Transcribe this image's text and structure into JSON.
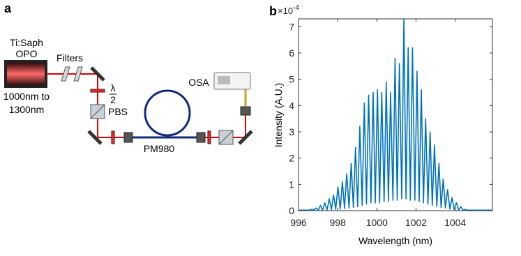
{
  "panel_a": {
    "panel_label": "a",
    "source_line1": "Ti:Saph",
    "source_line2": "OPO",
    "range_line1": "1000nm to",
    "range_line2": "1300nm",
    "filters": "Filters",
    "half_wave": {
      "numerator": "λ",
      "denominator": "2"
    },
    "pbs": "PBS",
    "fiber": "PM980",
    "osa": "OSA"
  },
  "chart_data": {
    "type": "line",
    "panel_label": "b",
    "x_label": "Wavelength (nm)",
    "y_label": "Intensity (A.U.)",
    "y_multiplier": "×10",
    "y_multiplier_exponent": "-4",
    "xlim": [
      996,
      1005.9
    ],
    "xticks": [
      996,
      998,
      1000,
      1002,
      1004
    ],
    "ylim": [
      0,
      7.3
    ],
    "yticks": [
      0,
      1,
      2,
      3,
      4,
      5,
      6,
      7
    ],
    "x": [
      996.0,
      996.56,
      996.67,
      996.78,
      996.89,
      997.01,
      997.12,
      997.23,
      997.34,
      997.46,
      997.57,
      997.68,
      997.79,
      997.9,
      998.01,
      998.13,
      998.24,
      998.35,
      998.46,
      998.58,
      998.69,
      998.8,
      998.91,
      999.02,
      999.13,
      999.25,
      999.36,
      999.47,
      999.58,
      999.7,
      999.81,
      999.92,
      1000.03,
      1000.14,
      1000.25,
      1000.37,
      1000.48,
      1000.59,
      1000.7,
      1000.82,
      1000.93,
      1001.04,
      1001.15,
      1001.27,
      1001.38,
      1001.49,
      1001.6,
      1001.71,
      1001.82,
      1001.94,
      1002.05,
      1002.16,
      1002.27,
      1002.38,
      1002.49,
      1002.61,
      1002.72,
      1002.83,
      1002.94,
      1003.06,
      1003.17,
      1003.28,
      1003.39,
      1003.5,
      1003.61,
      1003.73,
      1003.84,
      1003.95,
      1004.06,
      1004.18,
      1004.29,
      1004.4,
      1004.51,
      1004.62,
      1005.0,
      1005.9
    ],
    "series": [
      {
        "color": "#0072bd",
        "values": [
          0.02,
          0.02,
          0.05,
          0.02,
          0.1,
          0.02,
          0.2,
          0.02,
          0.3,
          0.03,
          0.45,
          0.04,
          0.6,
          0.05,
          0.9,
          0.06,
          1.1,
          0.08,
          1.4,
          0.1,
          1.8,
          0.12,
          2.4,
          0.15,
          3.2,
          0.2,
          4.1,
          0.25,
          4.4,
          0.3,
          4.5,
          0.3,
          4.6,
          0.3,
          4.5,
          0.35,
          4.9,
          0.35,
          4.5,
          0.4,
          5.8,
          0.4,
          5.6,
          0.45,
          7.3,
          0.45,
          6.2,
          0.4,
          6.2,
          0.4,
          5.3,
          0.35,
          4.6,
          0.3,
          3.5,
          0.25,
          3.0,
          0.2,
          2.5,
          0.15,
          1.8,
          0.12,
          1.2,
          0.1,
          0.8,
          0.06,
          0.5,
          0.04,
          0.3,
          0.03,
          0.15,
          0.02,
          0.05,
          0.02,
          0.02,
          0.02
        ]
      }
    ]
  }
}
